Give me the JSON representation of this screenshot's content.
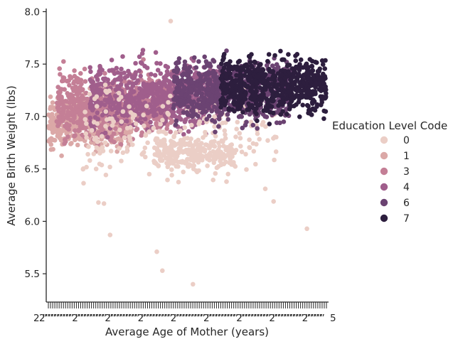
{
  "chart_data": {
    "type": "scatter",
    "title": "",
    "xlabel": "Average Age of Mother (years)",
    "ylabel": "Average Birth Weight (lbs)",
    "x_axis": "categorical (many crowded unreadable tick labels)",
    "x_ticks_first": "2",
    "x_ticks_last": "5",
    "ylim": [
      5.23,
      8.03
    ],
    "yticks": [
      "5.5",
      "6.0",
      "6.5",
      "7.0",
      "7.5",
      "8.0"
    ],
    "grid": false,
    "legend": {
      "title": "Education Level Code",
      "placement": "right",
      "entries": [
        {
          "label": "0",
          "color": "#ebcec6"
        },
        {
          "label": "1",
          "color": "#dba8a7"
        },
        {
          "label": "3",
          "color": "#c47f96"
        },
        {
          "label": "4",
          "color": "#a05e8c"
        },
        {
          "label": "6",
          "color": "#6b4372"
        },
        {
          "label": "7",
          "color": "#2d1e3e"
        }
      ]
    },
    "series": [
      {
        "name": "1",
        "clusters": [
          {
            "x": [
              0.0,
              0.3
            ],
            "y": [
              6.55,
              7.4
            ],
            "mean": 6.95,
            "n": 500
          }
        ]
      },
      {
        "name": "3",
        "clusters": [
          {
            "x": [
              0.03,
              0.45
            ],
            "y": [
              6.55,
              7.6
            ],
            "mean": 7.1,
            "n": 700
          }
        ]
      },
      {
        "name": "4",
        "clusters": [
          {
            "x": [
              0.15,
              0.62
            ],
            "y": [
              6.6,
              7.7
            ],
            "mean": 7.2,
            "n": 700
          }
        ]
      },
      {
        "name": "0",
        "clusters": [
          {
            "x": [
              0.12,
              0.82
            ],
            "y": [
              6.15,
              7.7
            ],
            "mean": 6.85,
            "n": 230
          },
          {
            "x": [
              0.38,
              0.67
            ],
            "y": [
              6.35,
              6.95
            ],
            "mean": 6.65,
            "n": 250
          }
        ],
        "outliers": [
          [
            0.222,
            5.87
          ],
          [
            0.39,
            5.71
          ],
          [
            0.41,
            5.53
          ],
          [
            0.52,
            5.4
          ],
          [
            0.93,
            5.93
          ],
          [
            0.44,
            7.91
          ],
          [
            0.18,
            6.18
          ],
          [
            0.2,
            6.17
          ],
          [
            0.78,
            6.31
          ],
          [
            0.81,
            6.19
          ]
        ]
      },
      {
        "name": "6",
        "clusters": [
          {
            "x": [
              0.45,
              0.87
            ],
            "y": [
              6.75,
              7.75
            ],
            "mean": 7.25,
            "n": 700
          }
        ]
      },
      {
        "name": "7",
        "clusters": [
          {
            "x": [
              0.62,
              1.0
            ],
            "y": [
              6.75,
              7.75
            ],
            "mean": 7.3,
            "n": 650
          }
        ]
      }
    ]
  }
}
